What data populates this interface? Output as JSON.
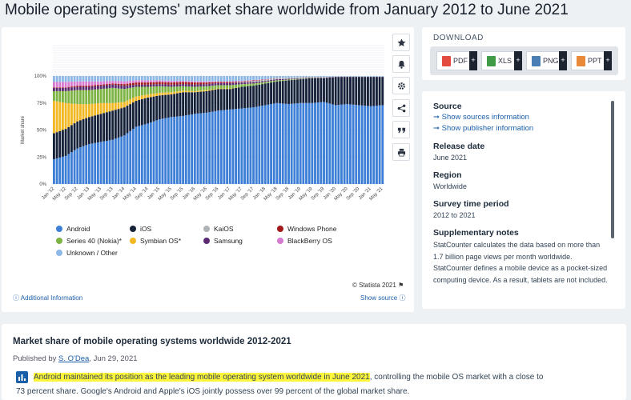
{
  "page_title": "Mobile operating systems' market share worldwide from January 2012 to June 2021",
  "toolbar": {
    "buttons": [
      {
        "name": "favorite-button",
        "icon": "star-icon"
      },
      {
        "name": "notification-button",
        "icon": "bell-icon"
      },
      {
        "name": "settings-button",
        "icon": "gear-icon"
      },
      {
        "name": "share-button",
        "icon": "share-icon"
      },
      {
        "name": "cite-button",
        "icon": "quote-icon"
      },
      {
        "name": "print-button",
        "icon": "printer-icon"
      }
    ]
  },
  "download": {
    "title": "DOWNLOAD",
    "buttons": [
      {
        "label": "PDF",
        "color": "#e34b3f"
      },
      {
        "label": "XLS",
        "color": "#3f9b45"
      },
      {
        "label": "PNG",
        "color": "#4a7fb5"
      },
      {
        "label": "PPT",
        "color": "#e8893a"
      }
    ],
    "plus": "+"
  },
  "chart_data": {
    "type": "bar",
    "stacked": true,
    "ylabel": "Market share",
    "yticks": [
      "0%",
      "25%",
      "50%",
      "75%",
      "100%"
    ],
    "ylim": [
      0,
      100
    ],
    "grid": true,
    "legend_position": "bottom",
    "tick_labels": [
      "Jan '12",
      "May '12",
      "Sep '12",
      "Jan '13",
      "May '13",
      "Sep '13",
      "Jan '14",
      "May '14",
      "Sep '14",
      "Jan '15",
      "May '15",
      "Sep '15",
      "Jan '16",
      "May '16",
      "Sep '16",
      "Jan '17",
      "May '17",
      "Sep '17",
      "Jan '18",
      "May '18",
      "Sep '18",
      "Jan '19",
      "May '19",
      "Sep '19",
      "Jan '20",
      "May '20",
      "Sep '20",
      "Jan '21",
      "May '21"
    ],
    "series": [
      {
        "name": "Android",
        "color": "#3d7fd6"
      },
      {
        "name": "iOS",
        "color": "#16213a"
      },
      {
        "name": "KaiOS",
        "color": "#aeb3b8"
      },
      {
        "name": "Windows Phone",
        "color": "#a5181a"
      },
      {
        "name": "Series 40 (Nokia)*",
        "color": "#7cb342"
      },
      {
        "name": "Symbian OS*",
        "color": "#f2b824"
      },
      {
        "name": "Samsung",
        "color": "#5b2a73"
      },
      {
        "name": "BlackBerry OS",
        "color": "#d77bd0"
      },
      {
        "name": "Unknown / Other",
        "color": "#8db8e6"
      }
    ],
    "values_by_tick": [
      {
        "Android": 23,
        "iOS": 24,
        "Windows Phone": 0.5,
        "Series 40 (Nokia)*": 9,
        "Symbian OS*": 30,
        "Samsung": 3,
        "BlackBerry OS": 5,
        "Unknown / Other": 5.5
      },
      {
        "Android": 26,
        "iOS": 25,
        "Windows Phone": 0.5,
        "Series 40 (Nokia)*": 11,
        "Symbian OS*": 24,
        "Samsung": 3,
        "BlackBerry OS": 5,
        "Unknown / Other": 5.5
      },
      {
        "Android": 33,
        "iOS": 25,
        "Windows Phone": 1,
        "Series 40 (Nokia)*": 13,
        "Symbian OS*": 16,
        "Samsung": 3,
        "BlackBerry OS": 4,
        "Unknown / Other": 5
      },
      {
        "Android": 37,
        "iOS": 25,
        "Windows Phone": 1,
        "Series 40 (Nokia)*": 13,
        "Symbian OS*": 12,
        "Samsung": 3,
        "BlackBerry OS": 4,
        "Unknown / Other": 5
      },
      {
        "Android": 39,
        "iOS": 26,
        "Windows Phone": 1,
        "Series 40 (Nokia)*": 13,
        "Symbian OS*": 10,
        "Samsung": 3,
        "BlackBerry OS": 3,
        "Unknown / Other": 5
      },
      {
        "Android": 41,
        "iOS": 27,
        "Windows Phone": 1,
        "Series 40 (Nokia)*": 14,
        "Symbian OS*": 7,
        "Samsung": 3,
        "BlackBerry OS": 2.5,
        "Unknown / Other": 4.5
      },
      {
        "Android": 45,
        "iOS": 26,
        "Windows Phone": 1.5,
        "Series 40 (Nokia)*": 12,
        "Symbian OS*": 5,
        "Samsung": 3,
        "BlackBerry OS": 2.5,
        "Unknown / Other": 5
      },
      {
        "Android": 53,
        "iOS": 24,
        "Windows Phone": 2,
        "Series 40 (Nokia)*": 9,
        "Symbian OS*": 4,
        "Samsung": 2,
        "BlackBerry OS": 2,
        "Unknown / Other": 4
      },
      {
        "Android": 56,
        "iOS": 24,
        "Windows Phone": 2,
        "Series 40 (Nokia)*": 7,
        "Symbian OS*": 3,
        "Samsung": 2,
        "BlackBerry OS": 2,
        "Unknown / Other": 4
      },
      {
        "Android": 60,
        "iOS": 22,
        "Windows Phone": 2,
        "Series 40 (Nokia)*": 6,
        "Symbian OS*": 2.5,
        "Samsung": 2,
        "BlackBerry OS": 1.5,
        "Unknown / Other": 4
      },
      {
        "Android": 62,
        "iOS": 21,
        "Windows Phone": 2,
        "Series 40 (Nokia)*": 5,
        "Symbian OS*": 2,
        "Samsung": 2,
        "BlackBerry OS": 1.5,
        "Unknown / Other": 4.5
      },
      {
        "Android": 63,
        "iOS": 22,
        "Windows Phone": 2,
        "Series 40 (Nokia)*": 4,
        "Symbian OS*": 1.5,
        "Samsung": 2,
        "BlackBerry OS": 1,
        "Unknown / Other": 4.5
      },
      {
        "Android": 65,
        "iOS": 20,
        "Windows Phone": 2,
        "Series 40 (Nokia)*": 4,
        "Symbian OS*": 1,
        "Samsung": 2,
        "BlackBerry OS": 1,
        "Unknown / Other": 5
      },
      {
        "Android": 66,
        "iOS": 20,
        "Windows Phone": 1.5,
        "Series 40 (Nokia)*": 3.5,
        "Symbian OS*": 1,
        "Samsung": 2,
        "BlackBerry OS": 1,
        "Unknown / Other": 5
      },
      {
        "Android": 68,
        "iOS": 20,
        "Windows Phone": 1,
        "Series 40 (Nokia)*": 3,
        "Symbian OS*": 0.5,
        "Samsung": 2,
        "BlackBerry OS": 0.5,
        "Unknown / Other": 5
      },
      {
        "Android": 69,
        "iOS": 19,
        "Windows Phone": 1,
        "Series 40 (Nokia)*": 3,
        "Symbian OS*": 0.5,
        "Samsung": 2,
        "BlackBerry OS": 0.5,
        "Unknown / Other": 5
      },
      {
        "Android": 70,
        "iOS": 20,
        "Windows Phone": 0.5,
        "Series 40 (Nokia)*": 2.5,
        "KaiOS": 0.5,
        "Samsung": 1.5,
        "BlackBerry OS": 0.5,
        "Unknown / Other": 4.5
      },
      {
        "Android": 71,
        "iOS": 20,
        "Windows Phone": 0.5,
        "Series 40 (Nokia)*": 2,
        "KaiOS": 1,
        "Samsung": 1.5,
        "BlackBerry OS": 0.3,
        "Unknown / Other": 3.7
      },
      {
        "Android": 73,
        "iOS": 20,
        "Windows Phone": 0.3,
        "Series 40 (Nokia)*": 1.5,
        "KaiOS": 1,
        "Samsung": 1,
        "BlackBerry OS": 0.2,
        "Unknown / Other": 3
      },
      {
        "Android": 75,
        "iOS": 20,
        "Windows Phone": 0.2,
        "Series 40 (Nokia)*": 1,
        "KaiOS": 1,
        "Samsung": 1,
        "BlackBerry OS": 0.1,
        "Unknown / Other": 1.7
      },
      {
        "Android": 74,
        "iOS": 22,
        "Series 40 (Nokia)*": 0.7,
        "KaiOS": 1,
        "Samsung": 0.7,
        "Unknown / Other": 1.6
      },
      {
        "Android": 75,
        "iOS": 22,
        "Series 40 (Nokia)*": 0.5,
        "KaiOS": 1,
        "Samsung": 0.5,
        "Unknown / Other": 1
      },
      {
        "Android": 75,
        "iOS": 23,
        "Series 40 (Nokia)*": 0.3,
        "KaiOS": 0.8,
        "Samsung": 0.4,
        "Unknown / Other": 0.5
      },
      {
        "Android": 76,
        "iOS": 22,
        "KaiOS": 0.8,
        "Samsung": 0.4,
        "Unknown / Other": 0.8
      },
      {
        "Android": 73,
        "iOS": 26,
        "KaiOS": 0.4,
        "Samsung": 0.3,
        "Unknown / Other": 0.3
      },
      {
        "Android": 74,
        "iOS": 25,
        "KaiOS": 0.3,
        "Samsung": 0.3,
        "Unknown / Other": 0.4
      },
      {
        "Android": 73,
        "iOS": 26,
        "KaiOS": 0.3,
        "Samsung": 0.3,
        "Unknown / Other": 0.4
      },
      {
        "Android": 72,
        "iOS": 27,
        "KaiOS": 0.2,
        "Samsung": 0.3,
        "Unknown / Other": 0.5
      },
      {
        "Android": 73,
        "iOS": 26,
        "KaiOS": 0.2,
        "Samsung": 0.3,
        "Unknown / Other": 0.5
      }
    ]
  },
  "copyright": "© Statista 2021",
  "additional_info": "Additional Information",
  "show_source": "Show source",
  "info": {
    "source_title": "Source",
    "show_sources": "Show sources information",
    "show_publisher": "Show publisher information",
    "release_title": "Release date",
    "release_value": "June 2021",
    "region_title": "Region",
    "region_value": "Worldwide",
    "period_title": "Survey time period",
    "period_value": "2012 to 2021",
    "notes_title": "Supplementary notes",
    "notes_text": "StatCounter calculates the data based on more than 1.7 billion page views per month worldwide. StatCounter defines a mobile device as a pocket-sized computing device. As a result, tablets are not included."
  },
  "article": {
    "title": "Market share of mobile operating systems worldwide 2012-2021",
    "published_by": "Published by",
    "author": "S. O'Dea",
    "date": ", Jun 29, 2021",
    "highlight": "Android maintained its position as the leading mobile operating system worldwide in June 2021",
    "line1_rest": ", controlling the mobile OS market with a close to",
    "line2": "73 percent share. Google's Android and Apple's iOS jointly possess over 99 percent of the global market share."
  }
}
